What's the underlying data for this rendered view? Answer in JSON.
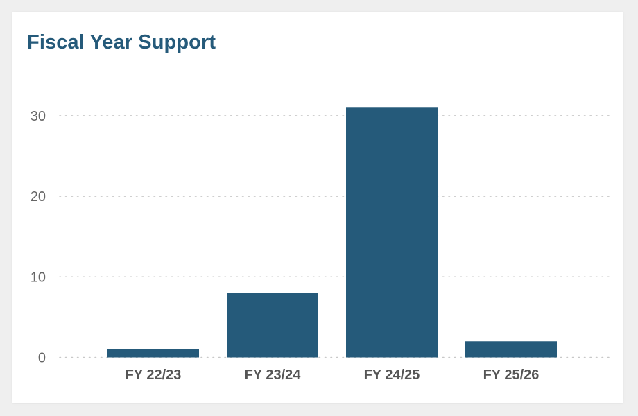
{
  "colors": {
    "bar": "#255a7a",
    "title": "#255a7a",
    "grid": "#c8c8c8",
    "tick_text": "#666666",
    "category_text": "#555555",
    "background": "#ffffff"
  },
  "chart_data": {
    "type": "bar",
    "title": "Fiscal Year Support",
    "xlabel": "",
    "ylabel": "",
    "categories": [
      "FY 22/23",
      "FY 23/24",
      "FY 24/25",
      "FY 25/26"
    ],
    "values": [
      1,
      8,
      31,
      2
    ],
    "ylim": [
      0,
      30
    ],
    "yticks": [
      0,
      10,
      20,
      30
    ],
    "grid": "horizontal-dotted",
    "legend": "none"
  }
}
